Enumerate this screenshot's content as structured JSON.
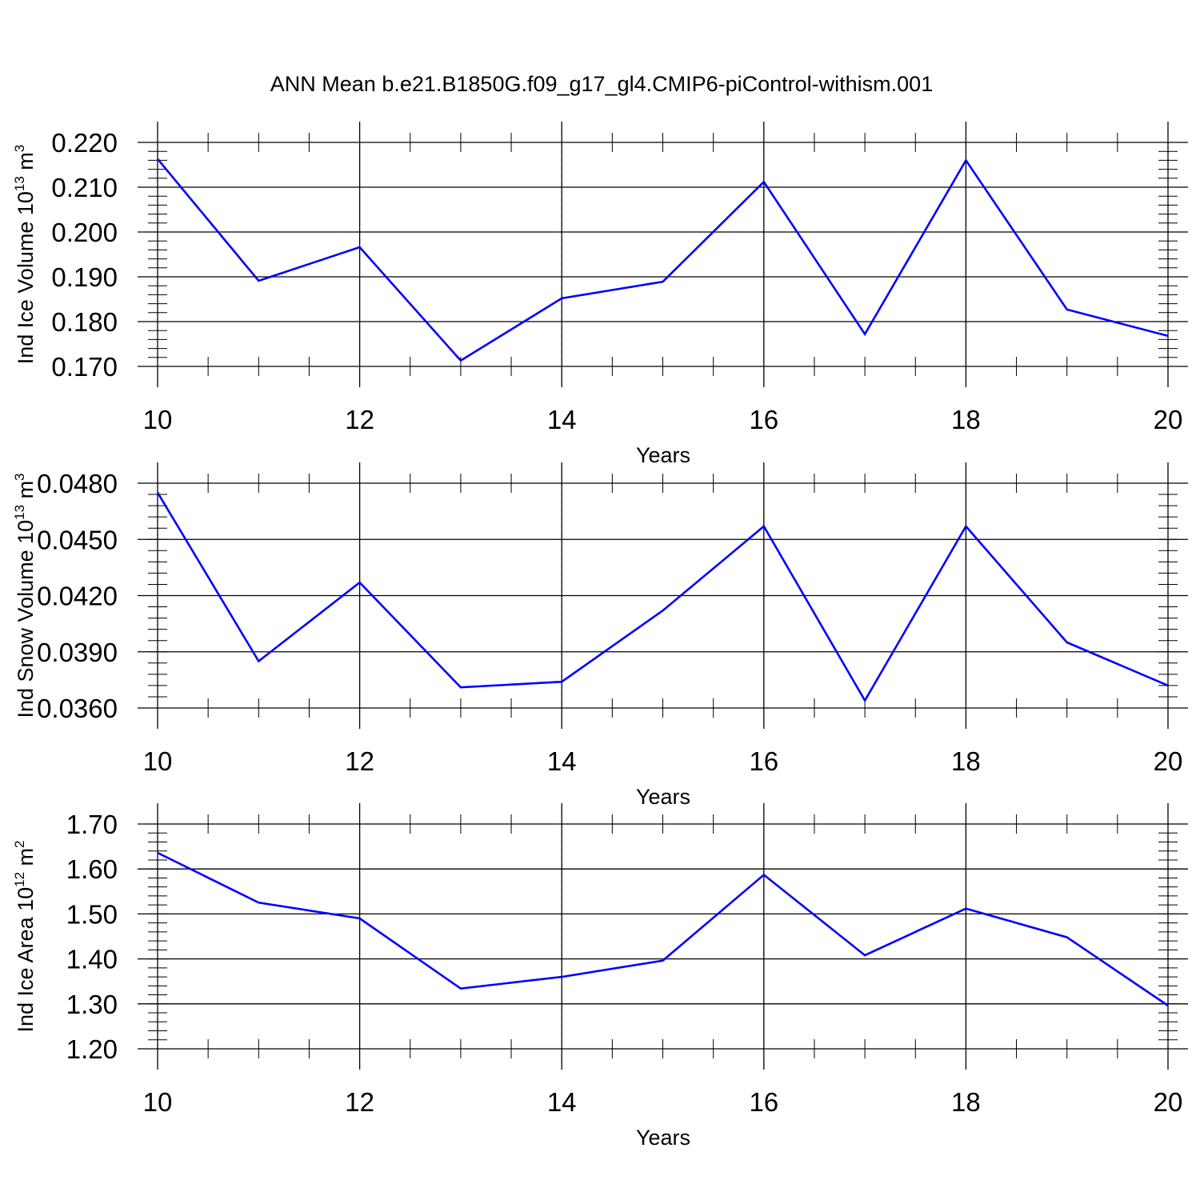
{
  "figure": {
    "title": "ANN Mean b.e21.B1850G.f09_g17_gl4.CMIP6-piControl-withism.001"
  },
  "chart_data": [
    {
      "type": "line",
      "x": [
        10,
        11,
        12,
        13,
        14,
        15,
        16,
        17,
        18,
        19,
        20
      ],
      "series": [
        {
          "values": [
            0.2163,
            0.1891,
            0.1966,
            0.1713,
            0.1852,
            0.1889,
            0.2112,
            0.1772,
            0.216,
            0.1827,
            0.1768
          ]
        }
      ],
      "xlabel": "Years",
      "ylabel": {
        "main": "Ind Ice Volume 10",
        "sup": "13",
        "mid": " m",
        "sup2": "3"
      },
      "xlim": [
        10,
        20
      ],
      "ylim": [
        0.17,
        0.22
      ],
      "xticks": [
        "10",
        "12",
        "14",
        "16",
        "18",
        "20"
      ],
      "yticks": [
        "0.170",
        "0.180",
        "0.190",
        "0.200",
        "0.210",
        "0.220"
      ],
      "ytick_values": [
        0.17,
        0.18,
        0.19,
        0.2,
        0.21,
        0.22
      ],
      "y_minor_step": 0.002,
      "grid": "dashed vertical lines at labeled x ticks",
      "colors": {
        "line": "#0000ff",
        "grid": "#9b9b9b",
        "axes": "#000000"
      }
    },
    {
      "type": "line",
      "x": [
        10,
        11,
        12,
        13,
        14,
        15,
        16,
        17,
        18,
        19,
        20
      ],
      "series": [
        {
          "values": [
            0.0475,
            0.0385,
            0.0427,
            0.0371,
            0.0374,
            0.0412,
            0.0457,
            0.0364,
            0.0457,
            0.0395,
            0.0372
          ]
        }
      ],
      "xlabel": "Years",
      "ylabel": {
        "main": "Ind Snow Volume 10",
        "sup": "13",
        "mid": " m",
        "sup2": "3"
      },
      "xlim": [
        10,
        20
      ],
      "ylim": [
        0.036,
        0.048
      ],
      "xticks": [
        "10",
        "12",
        "14",
        "16",
        "18",
        "20"
      ],
      "yticks": [
        "0.0360",
        "0.0390",
        "0.0420",
        "0.0450",
        "0.0480"
      ],
      "ytick_values": [
        0.036,
        0.039,
        0.042,
        0.045,
        0.048
      ],
      "y_minor_step": 0.0006,
      "grid": "dashed vertical lines at labeled x ticks",
      "colors": {
        "line": "#0000ff",
        "grid": "#9b9b9b",
        "axes": "#000000"
      }
    },
    {
      "type": "line",
      "x": [
        10,
        11,
        12,
        13,
        14,
        15,
        16,
        17,
        18,
        19,
        20
      ],
      "series": [
        {
          "values": [
            1.636,
            1.525,
            1.49,
            1.334,
            1.36,
            1.396,
            1.587,
            1.408,
            1.512,
            1.448,
            1.296
          ]
        }
      ],
      "xlabel": "Years",
      "ylabel": {
        "main": "Ind Ice Area 10",
        "sup": "12",
        "mid": " m",
        "sup2": "2"
      },
      "xlim": [
        10,
        20
      ],
      "ylim": [
        1.2,
        1.7
      ],
      "xticks": [
        "10",
        "12",
        "14",
        "16",
        "18",
        "20"
      ],
      "yticks": [
        "1.20",
        "1.30",
        "1.40",
        "1.50",
        "1.60",
        "1.70"
      ],
      "ytick_values": [
        1.2,
        1.3,
        1.4,
        1.5,
        1.6,
        1.7
      ],
      "y_minor_step": 0.02,
      "grid": "dashed vertical lines at labeled x ticks",
      "colors": {
        "line": "#0000ff",
        "grid": "#9b9b9b",
        "axes": "#000000"
      }
    }
  ]
}
